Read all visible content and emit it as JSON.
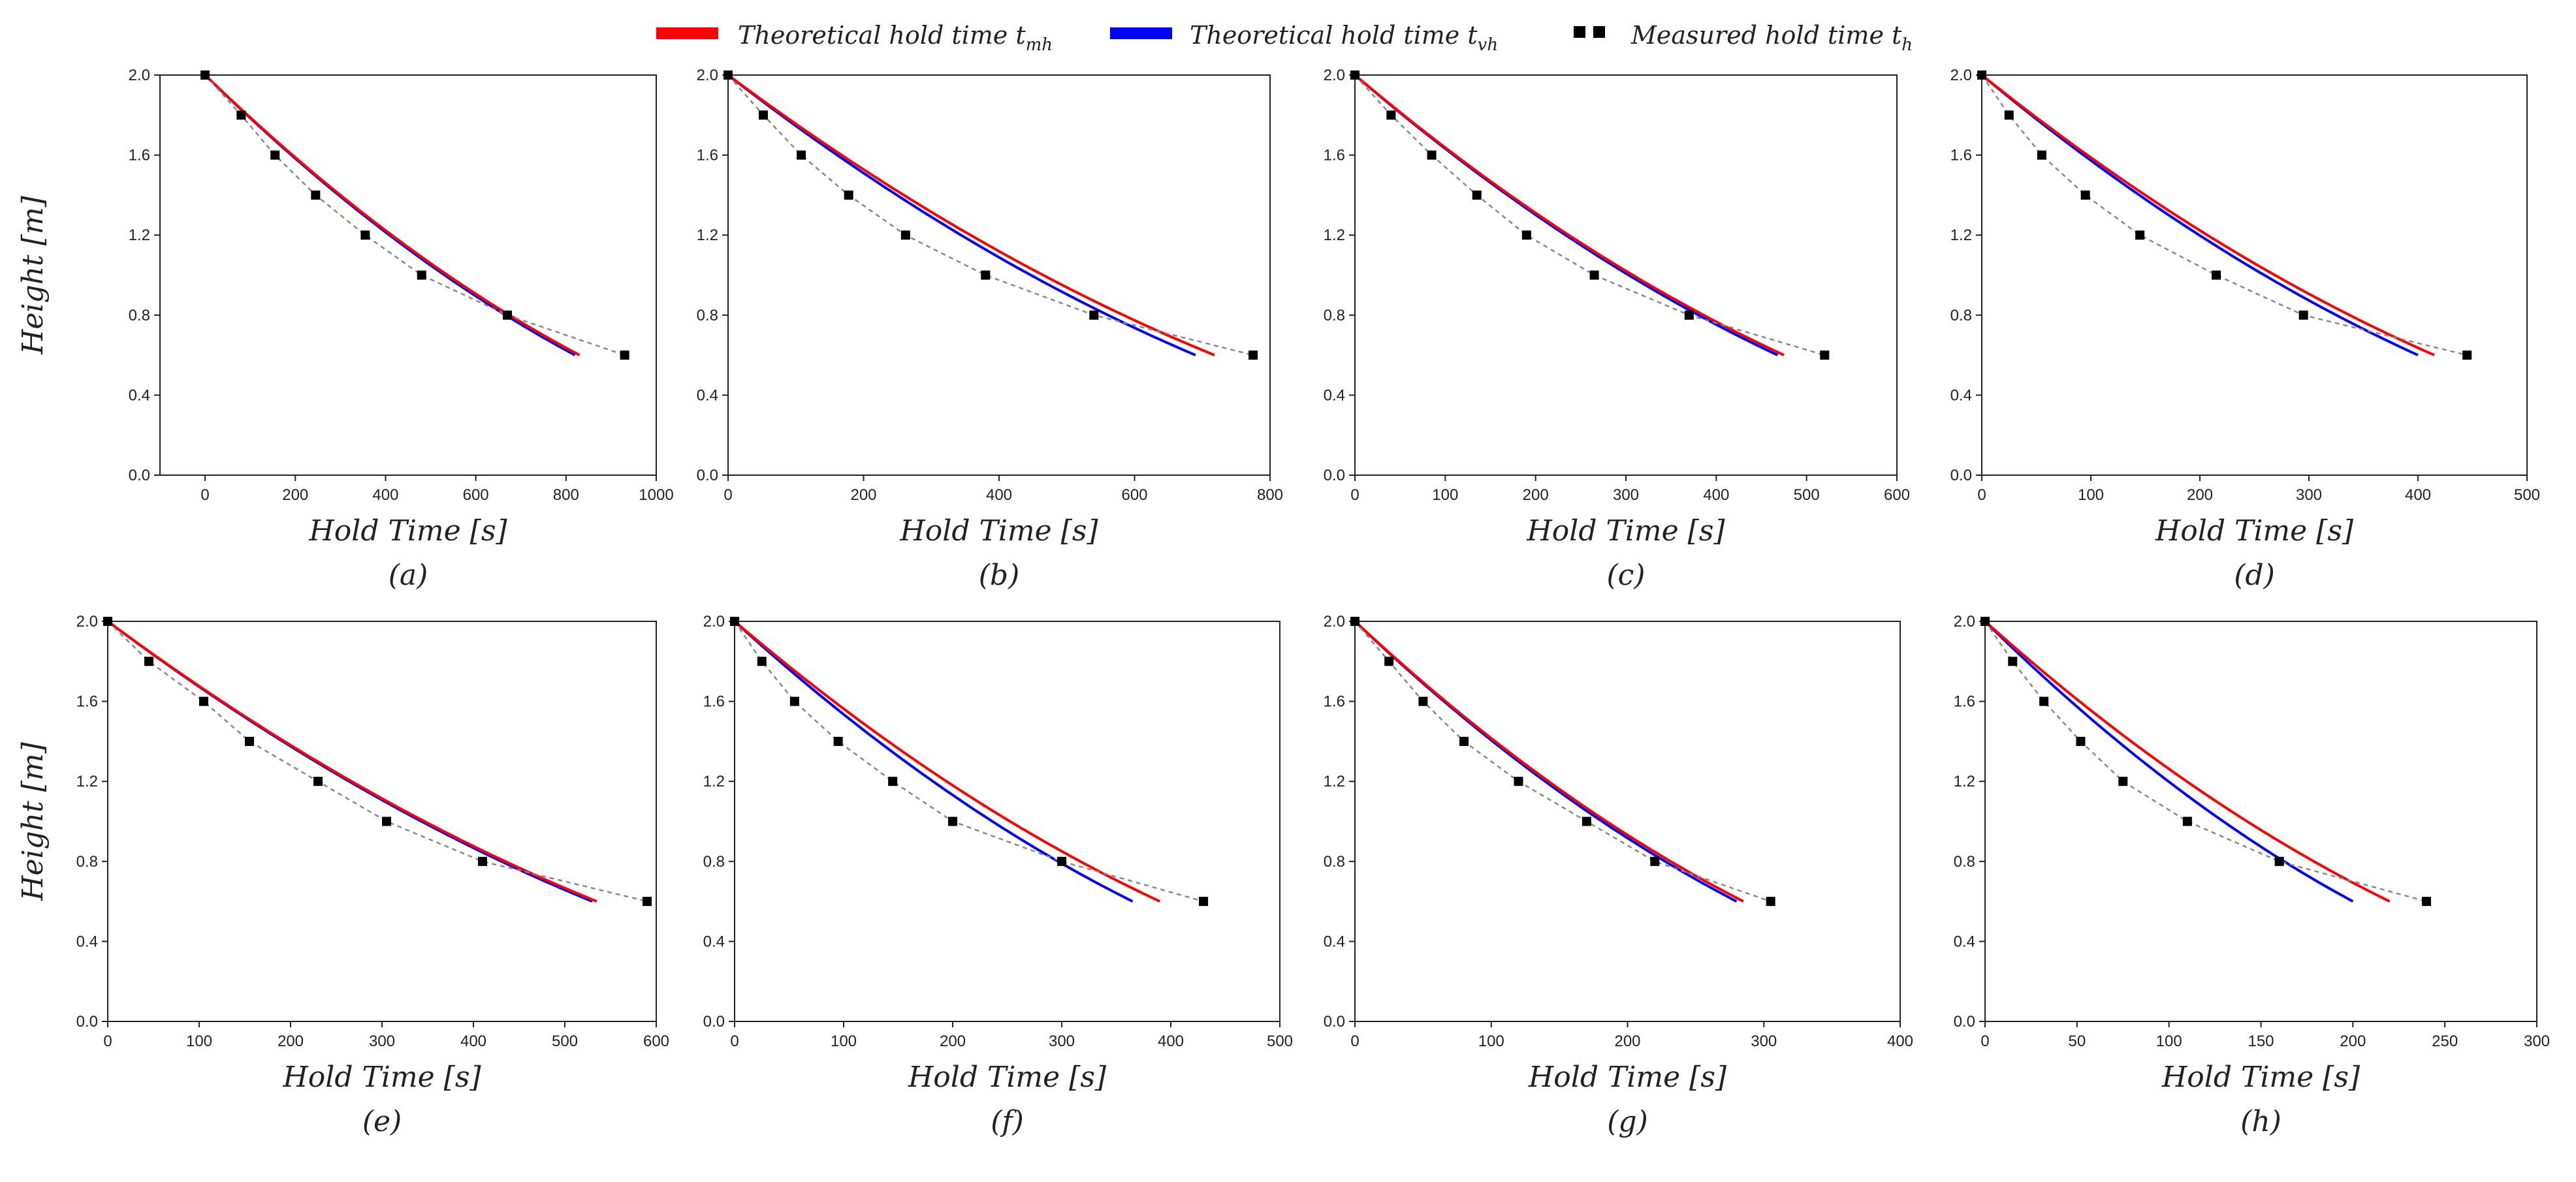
{
  "legend": {
    "items": [
      {
        "kind": "line",
        "color": "#ff0000",
        "label": "Theoretical hold time t",
        "sub": "mh"
      },
      {
        "kind": "line",
        "color": "#0000ff",
        "label": "Theoretical hold time t",
        "sub": "vh"
      },
      {
        "kind": "squares",
        "color": "#000000",
        "label": "Measured hold time t",
        "sub": "h"
      }
    ]
  },
  "colors": {
    "mh": "#ff0000",
    "vh": "#0000ff",
    "measured": "#000000",
    "fit": "#888888"
  },
  "chart_data": [
    {
      "type": "line",
      "panel": "(a)",
      "xlabel": "Hold Time [s]",
      "ylabel": "Height [m]",
      "xlim": [
        -100,
        1000
      ],
      "ylim": [
        0,
        2.0
      ],
      "xticks": [
        0,
        200,
        400,
        600,
        800,
        1000
      ],
      "yticks": [
        0.0,
        0.4,
        0.8,
        1.2,
        1.6,
        2.0
      ],
      "measured": {
        "x": [
          0,
          80,
          155,
          245,
          355,
          480,
          670,
          930
        ],
        "y": [
          2.0,
          1.8,
          1.6,
          1.4,
          1.2,
          1.0,
          0.8,
          0.6
        ]
      },
      "tmh_end": 830,
      "tvh_end": 820
    },
    {
      "type": "line",
      "panel": "(b)",
      "xlabel": "Hold Time [s]",
      "ylabel": "",
      "xlim": [
        0,
        800
      ],
      "ylim": [
        0,
        2.0
      ],
      "xticks": [
        0,
        200,
        400,
        600,
        800
      ],
      "yticks": [
        0.0,
        0.4,
        0.8,
        1.2,
        1.6,
        2.0
      ],
      "measured": {
        "x": [
          0,
          52,
          108,
          178,
          262,
          380,
          540,
          775
        ],
        "y": [
          2.0,
          1.8,
          1.6,
          1.4,
          1.2,
          1.0,
          0.8,
          0.6
        ]
      },
      "tmh_end": 718,
      "tvh_end": 690
    },
    {
      "type": "line",
      "panel": "(c)",
      "xlabel": "Hold Time [s]",
      "ylabel": "",
      "xlim": [
        0,
        600
      ],
      "ylim": [
        0,
        2.0
      ],
      "xticks": [
        0,
        100,
        200,
        300,
        400,
        500,
        600
      ],
      "yticks": [
        0.0,
        0.4,
        0.8,
        1.2,
        1.6,
        2.0
      ],
      "measured": {
        "x": [
          0,
          40,
          85,
          135,
          190,
          265,
          370,
          520
        ],
        "y": [
          2.0,
          1.8,
          1.6,
          1.4,
          1.2,
          1.0,
          0.8,
          0.6
        ]
      },
      "tmh_end": 475,
      "tvh_end": 468
    },
    {
      "type": "line",
      "panel": "(d)",
      "xlabel": "Hold Time [s]",
      "ylabel": "",
      "xlim": [
        0,
        500
      ],
      "ylim": [
        0,
        2.0
      ],
      "xticks": [
        0,
        100,
        200,
        300,
        400,
        500
      ],
      "yticks": [
        0.0,
        0.4,
        0.8,
        1.2,
        1.6,
        2.0
      ],
      "measured": {
        "x": [
          0,
          25,
          55,
          95,
          145,
          215,
          295,
          445
        ],
        "y": [
          2.0,
          1.8,
          1.6,
          1.4,
          1.2,
          1.0,
          0.8,
          0.6
        ]
      },
      "tmh_end": 415,
      "tvh_end": 400
    },
    {
      "type": "line",
      "panel": "(e)",
      "xlabel": "Hold Time [s]",
      "ylabel": "Height [m]",
      "xlim": [
        0,
        600
      ],
      "ylim": [
        0,
        2.0
      ],
      "xticks": [
        0,
        100,
        200,
        300,
        400,
        500,
        600
      ],
      "yticks": [
        0.0,
        0.4,
        0.8,
        1.2,
        1.6,
        2.0
      ],
      "measured": {
        "x": [
          0,
          45,
          105,
          155,
          230,
          305,
          410,
          590
        ],
        "y": [
          2.0,
          1.8,
          1.6,
          1.4,
          1.2,
          1.0,
          0.8,
          0.6
        ]
      },
      "tmh_end": 535,
      "tvh_end": 530
    },
    {
      "type": "line",
      "panel": "(f)",
      "xlabel": "Hold Time [s]",
      "ylabel": "",
      "xlim": [
        0,
        500
      ],
      "ylim": [
        0,
        2.0
      ],
      "xticks": [
        0,
        100,
        200,
        300,
        400,
        500
      ],
      "yticks": [
        0.0,
        0.4,
        0.8,
        1.2,
        1.6,
        2.0
      ],
      "measured": {
        "x": [
          0,
          25,
          55,
          95,
          145,
          200,
          300,
          430
        ],
        "y": [
          2.0,
          1.8,
          1.6,
          1.4,
          1.2,
          1.0,
          0.8,
          0.6
        ]
      },
      "tmh_end": 390,
      "tvh_end": 365
    },
    {
      "type": "line",
      "panel": "(g)",
      "xlabel": "Hold Time [s]",
      "ylabel": "",
      "xlim": [
        0,
        400
      ],
      "ylim": [
        0,
        2.0
      ],
      "xticks": [
        0,
        100,
        200,
        300,
        400
      ],
      "yticks": [
        0.0,
        0.4,
        0.8,
        1.2,
        1.6,
        2.0
      ],
      "measured": {
        "x": [
          0,
          25,
          50,
          80,
          120,
          170,
          220,
          305
        ],
        "y": [
          2.0,
          1.8,
          1.6,
          1.4,
          1.2,
          1.0,
          0.8,
          0.6
        ]
      },
      "tmh_end": 285,
      "tvh_end": 280
    },
    {
      "type": "line",
      "panel": "(h)",
      "xlabel": "Hold Time [s]",
      "ylabel": "",
      "xlim": [
        0,
        300
      ],
      "ylim": [
        0,
        2.0
      ],
      "xticks": [
        0,
        50,
        100,
        150,
        200,
        250,
        300
      ],
      "yticks": [
        0.0,
        0.4,
        0.8,
        1.2,
        1.6,
        2.0
      ],
      "measured": {
        "x": [
          0,
          15,
          32,
          52,
          75,
          110,
          160,
          240
        ],
        "y": [
          2.0,
          1.8,
          1.6,
          1.4,
          1.2,
          1.0,
          0.8,
          0.6
        ]
      },
      "tmh_end": 220,
      "tvh_end": 200
    }
  ]
}
